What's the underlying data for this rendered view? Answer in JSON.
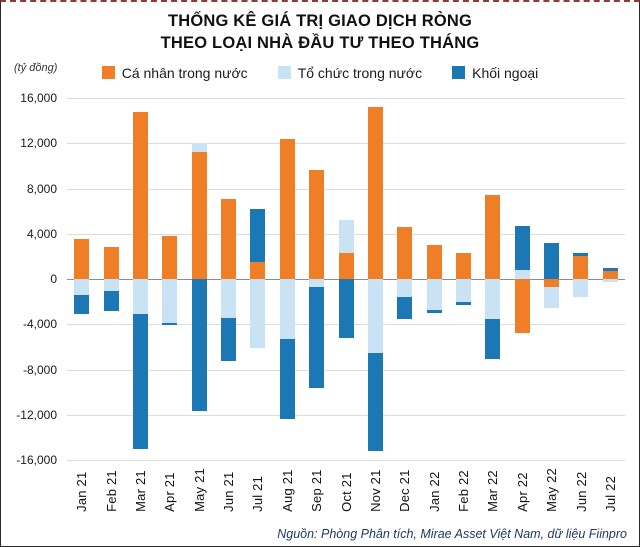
{
  "card": {
    "title_line1": "THỐNG KÊ GIÁ TRỊ GIAO DỊCH RÒNG",
    "title_line2": "THEO LOẠI NHÀ ĐẦU TƯ THEO THÁNG",
    "unit_label": "(tỷ đồng)",
    "source": "Nguồn: Phòng Phân tích, Mirae Asset Việt Nam, dữ liệu Fiinpro"
  },
  "chart_data": {
    "type": "bar",
    "stacked": true,
    "title": "THỐNG KÊ GIÁ TRỊ GIAO DỊCH RÒNG THEO LOẠI NHÀ ĐẦU TƯ THEO THÁNG",
    "ylabel": "(tỷ đồng)",
    "ylim": [
      -16000,
      16000
    ],
    "ytick_step": 4000,
    "grid": true,
    "legend_position": "top",
    "categories": [
      "Jan 21",
      "Feb 21",
      "Mar 21",
      "Apr 21",
      "May 21",
      "Jun 21",
      "Jul 21",
      "Aug 21",
      "Sep 21",
      "Oct 21",
      "Nov 21",
      "Dec 21",
      "Jan 22",
      "Feb 22",
      "Mar 22",
      "Apr 22",
      "May 22",
      "Jun 22",
      "Jul 22"
    ],
    "series": [
      {
        "name": "Cá nhân trong nước",
        "color": "#F07E27",
        "values": [
          3500,
          2800,
          14800,
          3800,
          11200,
          7100,
          1500,
          12400,
          9600,
          2300,
          15200,
          4600,
          3000,
          2300,
          7400,
          -4800,
          -700,
          2000,
          700
        ]
      },
      {
        "name": "Tổ chức trong nước",
        "color": "#C9E2F4",
        "values": [
          -1400,
          -1100,
          -3100,
          -3900,
          800,
          -3400,
          -6100,
          -5300,
          -700,
          2900,
          -6500,
          -1600,
          -2700,
          -2000,
          -3500,
          800,
          -1900,
          -1600,
          -300
        ]
      },
      {
        "name": "Khối ngoại",
        "color": "#1B78B4",
        "values": [
          -1700,
          -1700,
          -11900,
          -200,
          -11700,
          -3800,
          4700,
          -7100,
          -8900,
          -5200,
          -8700,
          -1900,
          -300,
          -300,
          -3600,
          3900,
          3200,
          300,
          300
        ]
      }
    ]
  }
}
